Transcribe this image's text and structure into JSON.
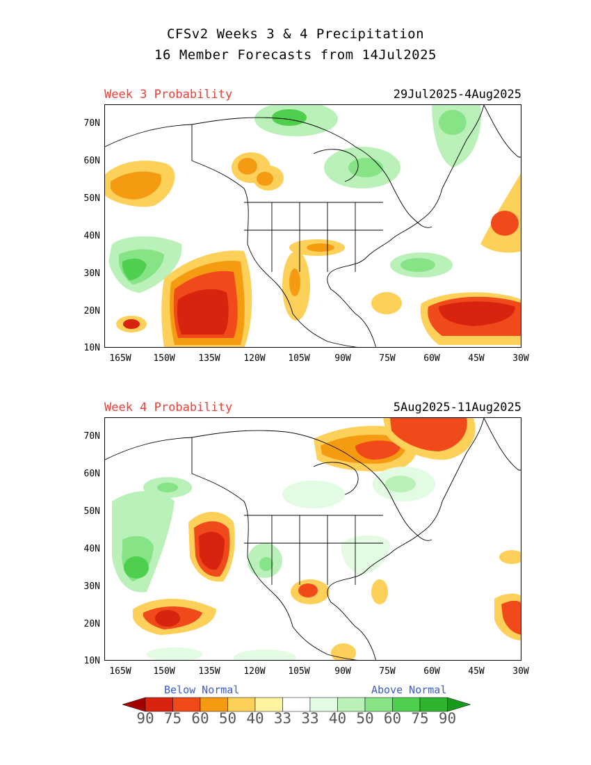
{
  "title_line1": "CFSv2 Weeks 3 & 4 Precipitation",
  "title_line2": "16 Member Forecasts from 14Jul2025",
  "panels": [
    {
      "week_label": "Week 3 Probability",
      "date_range": "29Jul2025-4Aug2025"
    },
    {
      "week_label": "Week 4 Probability",
      "date_range": "5Aug2025-11Aug2025"
    }
  ],
  "lat_ticks": [
    "70N",
    "60N",
    "50N",
    "40N",
    "30N",
    "20N",
    "10N"
  ],
  "lon_ticks": [
    "165W",
    "150W",
    "135W",
    "120W",
    "105W",
    "90W",
    "75W",
    "60W",
    "45W",
    "30W"
  ],
  "legend": {
    "below_label": "Below Normal",
    "above_label": "Above Normal",
    "values": [
      "90",
      "75",
      "60",
      "50",
      "40",
      "33",
      "33",
      "40",
      "50",
      "60",
      "75",
      "90"
    ],
    "colors": [
      "#a50000",
      "#d8230f",
      "#f04a1a",
      "#f59b12",
      "#fdd05a",
      "#fff3a0",
      "#ffffff",
      "#e2fbe2",
      "#b9f1b9",
      "#86e386",
      "#4ed04e",
      "#2fb42f",
      "#1a9a1a"
    ]
  }
}
